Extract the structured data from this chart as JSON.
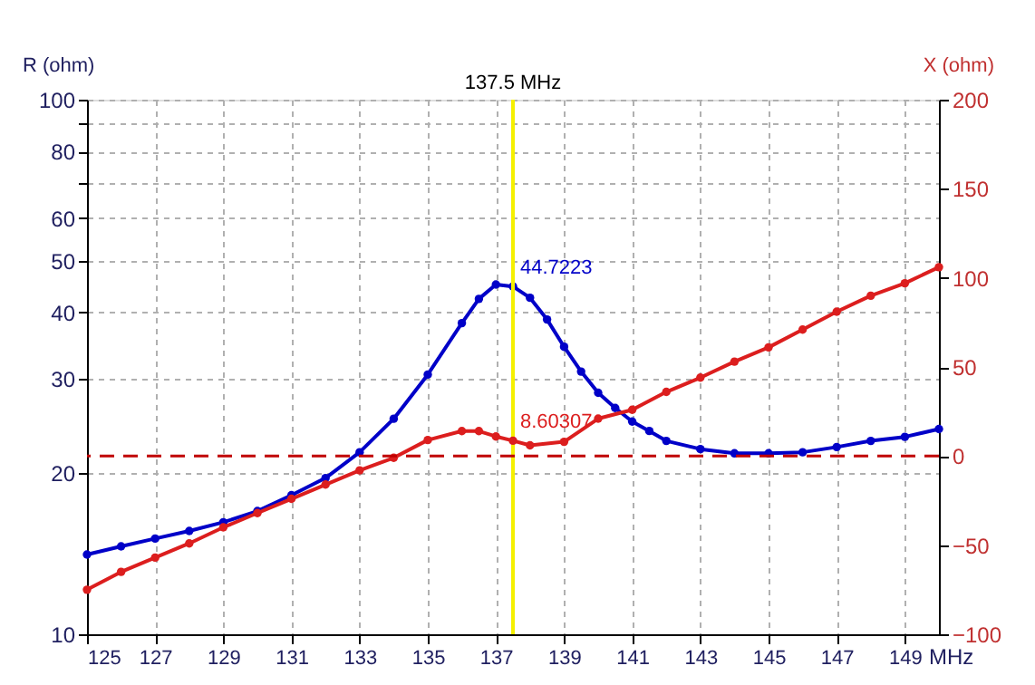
{
  "chart_data": {
    "type": "line",
    "xlabel": "MHz",
    "ylabel": "R (ohm)",
    "y2label": "X (ohm)",
    "xlim": [
      125,
      150
    ],
    "xticks": [
      125,
      127,
      129,
      131,
      133,
      135,
      137,
      139,
      141,
      143,
      145,
      147,
      149
    ],
    "ylim": [
      10,
      100
    ],
    "yticks": [
      10,
      20,
      30,
      40,
      50,
      60,
      {
        "value": 70,
        "label": null
      },
      80,
      {
        "value": 90,
        "label": null
      },
      100
    ],
    "log": "y",
    "y2lim": [
      -100,
      200
    ],
    "y2ticks": [
      -100,
      -50,
      0,
      50,
      100,
      150,
      200
    ],
    "grid": true,
    "marker": "circle",
    "series": [
      {
        "color": "#0000c8",
        "x": [
          125,
          126,
          127,
          128,
          129,
          130,
          131,
          132,
          133,
          134,
          135,
          136,
          136.5,
          137,
          137.5,
          138,
          138.5,
          139,
          139.5,
          140,
          140.5,
          141,
          141.5,
          142,
          143,
          144,
          145,
          146,
          147,
          148,
          149,
          150
        ],
        "values": [
          14.1,
          14.6,
          15.1,
          15.6,
          16.2,
          17.0,
          18.2,
          19.6,
          21.9,
          25.3,
          30.6,
          38.2,
          42.4,
          45.1,
          44.7223,
          42.6,
          38.8,
          34.5,
          31.0,
          28.3,
          26.5,
          25.0,
          24.0,
          23.0,
          22.2,
          21.8,
          21.8,
          21.9,
          22.4,
          23.0,
          23.4,
          24.2
        ]
      },
      {
        "color": "#dc1e1e",
        "axis": "y2",
        "x": [
          125,
          126,
          127,
          128,
          129,
          130,
          131,
          132,
          133,
          134,
          135,
          136,
          136.5,
          137,
          137.5,
          138,
          139,
          140,
          141,
          142,
          143,
          144,
          145,
          146,
          147,
          148,
          149,
          150
        ],
        "values": [
          -75,
          -65,
          -57,
          -49,
          -40,
          -32,
          -24,
          -16,
          -8,
          -1,
          9,
          14,
          14,
          11,
          8.60307,
          6,
          8,
          21,
          26,
          36,
          44,
          53,
          61,
          71,
          81,
          90,
          97,
          106
        ]
      }
    ],
    "ref_lines": [
      {
        "axis": "y2",
        "value": 0,
        "color": "#c00000",
        "line_style": "dashed"
      },
      {
        "axis": "x",
        "value": 137.5,
        "label": "137.5 MHz",
        "color": "#f5f000"
      }
    ],
    "annotations": [
      "44.7223",
      "8.60307"
    ]
  }
}
